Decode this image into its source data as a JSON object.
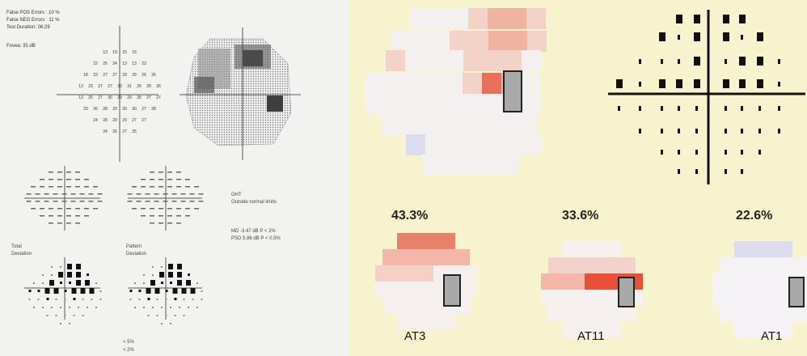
{
  "report": {
    "false_pos": "False POS Errors : 10 %",
    "false_neg": "False NEG Errors : 11 %",
    "test_duration": "Test Duration: 06:29",
    "fovea": "Fovea: 35 dB",
    "ght_title": "GHT",
    "ght_value": "Outside normal limits",
    "md": "MD    -3.47 dB  P < 2%",
    "psd": "PSD   5.96 dB  P < 0.5%",
    "total_deviation_l1": "Total",
    "total_deviation_l2": "Deviation",
    "pattern_deviation_l1": "Pattern",
    "pattern_deviation_l2": "Deviation",
    "legend_1": "< 5%",
    "legend_2": "< 2%"
  },
  "sensitivity_rows": [
    "13 19 15 16",
    "22 25 24 13 13 23",
    "18 23 27 27 29 29 26 26",
    "13 23 27 27 30 31 29 28 26",
    "13 25 27 30 29 29 25 27 27",
    "23 26 28 29 30 30 27 28",
    "24 28 29 29 27 27",
    "24 25 27 25"
  ],
  "atypical": {
    "panels": [
      {
        "percent": "43.3%",
        "label": "AT3"
      },
      {
        "percent": "33.6%",
        "label": "AT11"
      },
      {
        "percent": "22.6%",
        "label": "AT1"
      }
    ]
  },
  "colors": {
    "left_bg": "#f2f2f0",
    "right_bg": "#f7f3cf",
    "red_strong": "#e8503a",
    "red_light": "#f3b6a8",
    "blind_spot": "#a9a9a9"
  }
}
